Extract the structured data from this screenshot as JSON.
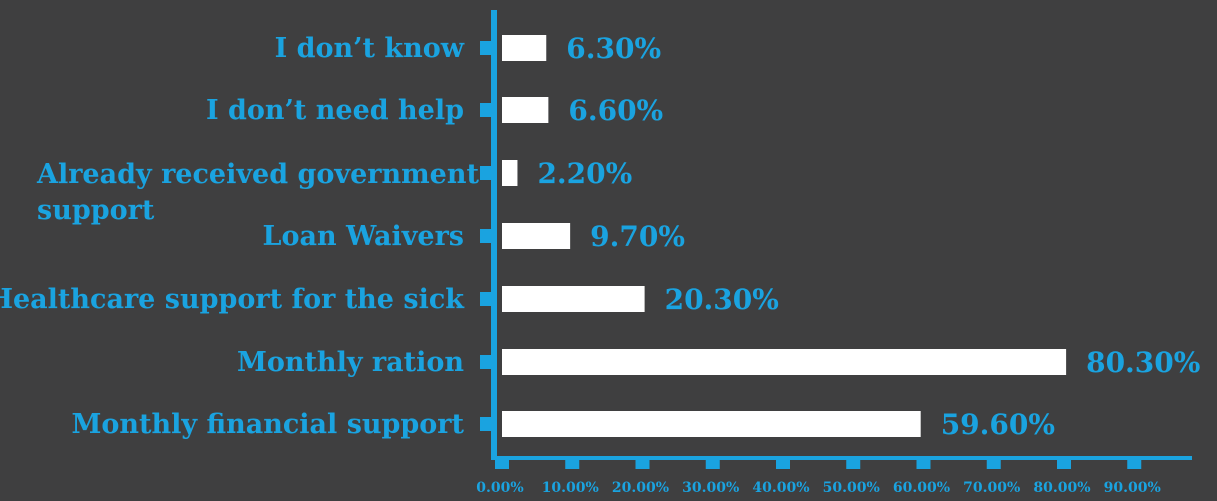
{
  "chart_data": {
    "type": "bar",
    "orientation": "horizontal",
    "categories": [
      "I don’t know",
      "I don’t need help",
      [
        "Already received government",
        "support"
      ],
      "Loan Waivers",
      "Healthcare support for the sick",
      "Monthly ration",
      "Monthly financial support"
    ],
    "values": [
      6.3,
      6.6,
      2.2,
      9.7,
      20.3,
      80.3,
      59.6
    ],
    "value_labels": [
      "6.30%",
      "6.60%",
      "2.20%",
      "9.70%",
      "20.30%",
      "80.30%",
      "59.60%"
    ],
    "xlim": [
      0,
      90
    ],
    "x_ticks": [
      "0.00%",
      "10.00%",
      "20.00%",
      "30.00%",
      "40.00%",
      "50.00%",
      "60.00%",
      "70.00%",
      "80.00%",
      "90.00%"
    ],
    "title": "",
    "xlabel": "",
    "ylabel": "",
    "grid": false,
    "legend": "none",
    "colors": {
      "background": "#3f3f40",
      "bar": "#ffffff",
      "axis": "#1aa3e0",
      "text": "#1aa3e0"
    }
  }
}
